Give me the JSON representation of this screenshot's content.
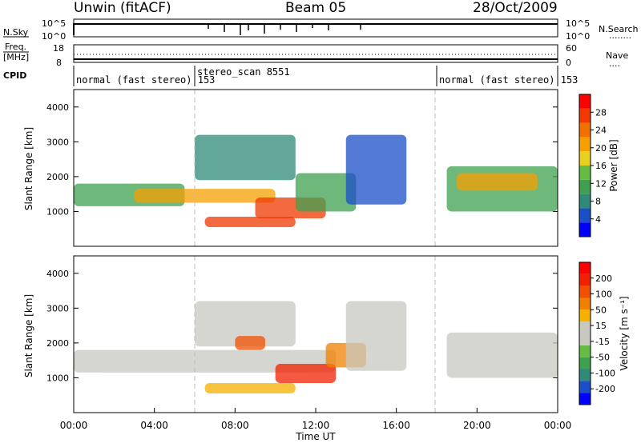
{
  "header": {
    "station": "Unwin (fitACF)",
    "beam": "Beam 05",
    "date": "28/Oct/2009"
  },
  "sky_panel": {
    "left_label": "N.Sky",
    "right_label": "N.Search",
    "left_ticks": [
      "10^5",
      "10^0"
    ],
    "right_ticks": [
      "10^5",
      "10^0"
    ],
    "dots": "........"
  },
  "freq_panel": {
    "left_label_top": "Freq.",
    "left_label_bottom": "[MHz]",
    "right_label": "Nave",
    "left_ticks": [
      "18",
      "8"
    ],
    "right_ticks": [
      "60",
      "0"
    ],
    "dots": "...."
  },
  "cpid": {
    "label": "CPID",
    "segments": [
      {
        "text": "normal (fast stereo) 153",
        "start": 0.0
      },
      {
        "text": "stereo_scan 8551",
        "start": 6.0
      },
      {
        "text": "normal (fast stereo) 153",
        "start": 18.0
      }
    ]
  },
  "power_colorbar": {
    "label": "Power [dB]",
    "ticks": [
      "28",
      "24",
      "20",
      "16",
      "12",
      "8",
      "4"
    ],
    "colors": [
      "#0000ff",
      "#1a4fc8",
      "#2f8a7a",
      "#3fa050",
      "#66bb44",
      "#e8d020",
      "#f5a000",
      "#f07000",
      "#f03800",
      "#ff0000"
    ]
  },
  "velocity_colorbar": {
    "label": "Velocity [m s⁻¹]",
    "ticks": [
      "200",
      "100",
      "50",
      "15",
      "-15",
      "-50",
      "-100",
      "-200"
    ],
    "colors": [
      "#0000ff",
      "#1a4fc8",
      "#2f8a7a",
      "#3fa050",
      "#66bb44",
      "#c8c8c0",
      "#c8c8c0",
      "#f5b000",
      "#f08000",
      "#f05000",
      "#f02000",
      "#ff0000"
    ]
  },
  "chart_data": [
    {
      "type": "heatmap",
      "name": "Power",
      "ylabel": "Slant Range [km]",
      "xlim": [
        0,
        24
      ],
      "ylim": [
        0,
        4500
      ],
      "yticks": [
        1000,
        2000,
        3000,
        4000
      ],
      "regions": [
        {
          "t0": 0.0,
          "t1": 5.5,
          "r0": 1150,
          "r1": 1800,
          "level": 3
        },
        {
          "t0": 3.0,
          "t1": 10.0,
          "r0": 1250,
          "r1": 1650,
          "level": 6
        },
        {
          "t0": 6.0,
          "t1": 11.0,
          "r0": 1900,
          "r1": 3200,
          "level": 2
        },
        {
          "t0": 6.5,
          "t1": 11.0,
          "r0": 550,
          "r1": 850,
          "level": 8
        },
        {
          "t0": 9.0,
          "t1": 12.5,
          "r0": 800,
          "r1": 1400,
          "level": 8
        },
        {
          "t0": 11.0,
          "t1": 14.0,
          "r0": 1000,
          "r1": 2100,
          "level": 3
        },
        {
          "t0": 13.5,
          "t1": 16.5,
          "r0": 1200,
          "r1": 3200,
          "level": 1
        },
        {
          "t0": 18.5,
          "t1": 24.0,
          "r0": 1000,
          "r1": 2300,
          "level": 3
        },
        {
          "t0": 19.0,
          "t1": 23.0,
          "r0": 1600,
          "r1": 2100,
          "level": 6
        }
      ]
    },
    {
      "type": "heatmap",
      "name": "Velocity",
      "xlabel": "Time UT",
      "ylabel": "Slant Range [km]",
      "xlim": [
        0,
        24
      ],
      "ylim": [
        0,
        4500
      ],
      "yticks": [
        1000,
        2000,
        3000,
        4000
      ],
      "xticks": [
        "00:00",
        "04:00",
        "08:00",
        "12:00",
        "16:00",
        "20:00",
        "00:00"
      ],
      "regions": [
        {
          "t0": 0.0,
          "t1": 13.0,
          "r0": 1150,
          "r1": 1800,
          "level": 5
        },
        {
          "t0": 6.0,
          "t1": 11.0,
          "r0": 1900,
          "r1": 3200,
          "level": 6
        },
        {
          "t0": 8.0,
          "t1": 9.5,
          "r0": 1800,
          "r1": 2200,
          "level": 9
        },
        {
          "t0": 6.5,
          "t1": 11.0,
          "r0": 550,
          "r1": 850,
          "level": 7
        },
        {
          "t0": 10.0,
          "t1": 13.0,
          "r0": 850,
          "r1": 1400,
          "level": 10
        },
        {
          "t0": 12.5,
          "t1": 14.5,
          "r0": 1300,
          "r1": 2000,
          "level": 8
        },
        {
          "t0": 13.5,
          "t1": 16.5,
          "r0": 1200,
          "r1": 3200,
          "level": 5
        },
        {
          "t0": 18.5,
          "t1": 24.0,
          "r0": 1000,
          "r1": 2300,
          "level": 5
        }
      ]
    }
  ]
}
